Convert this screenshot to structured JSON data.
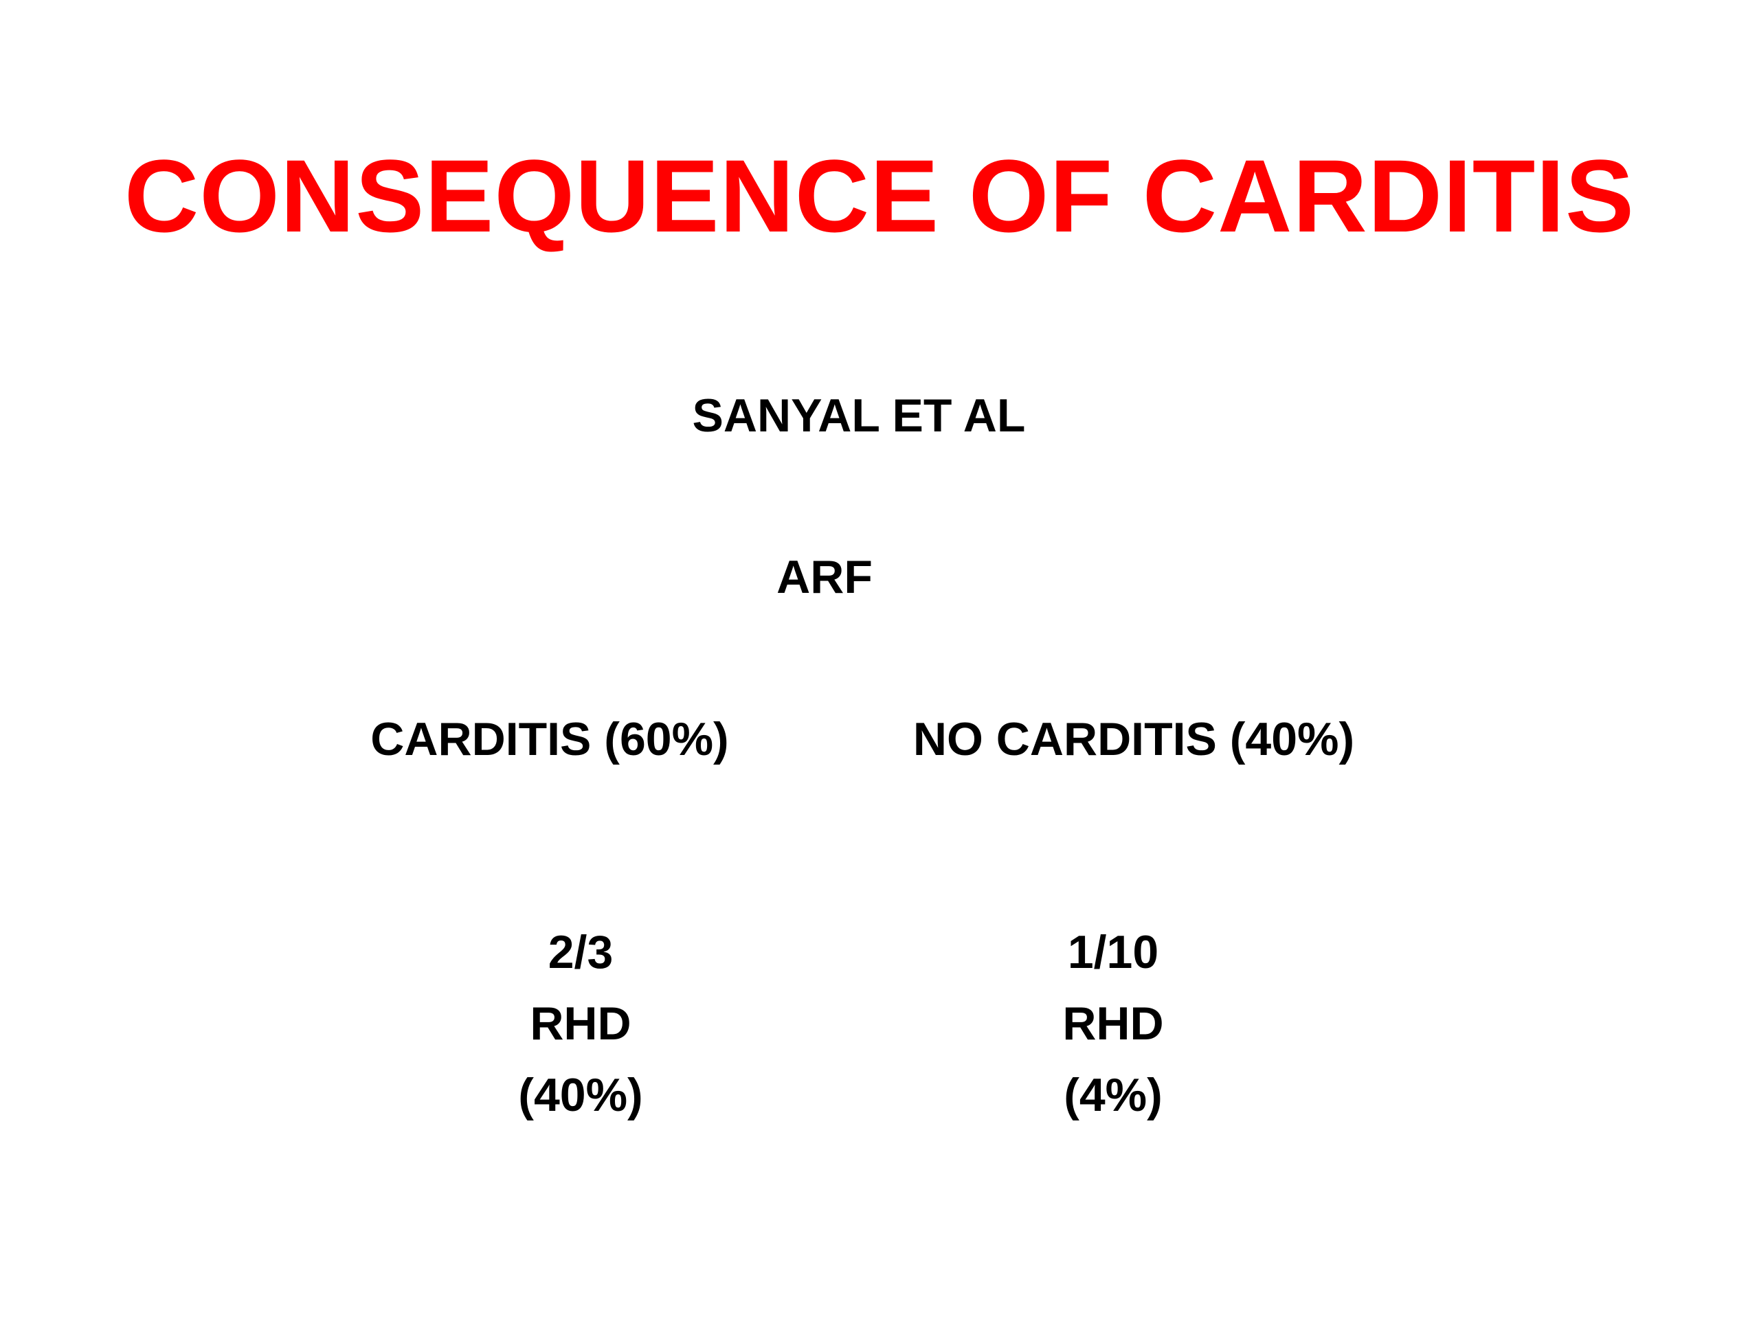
{
  "slide": {
    "title": "CONSEQUENCE OF CARDITIS",
    "source": "SANYAL ET AL",
    "root": "ARF",
    "branches": [
      {
        "label": "CARDITIS (60%)",
        "ratio": "2/3",
        "outcome": "RHD",
        "percent": "(40%)"
      },
      {
        "label": "NO CARDITIS (40%)",
        "ratio": "1/10",
        "outcome": "RHD",
        "percent": "(4%)"
      }
    ]
  },
  "colors": {
    "title": "#ff0000",
    "text": "#000000",
    "background": "#ffffff"
  }
}
